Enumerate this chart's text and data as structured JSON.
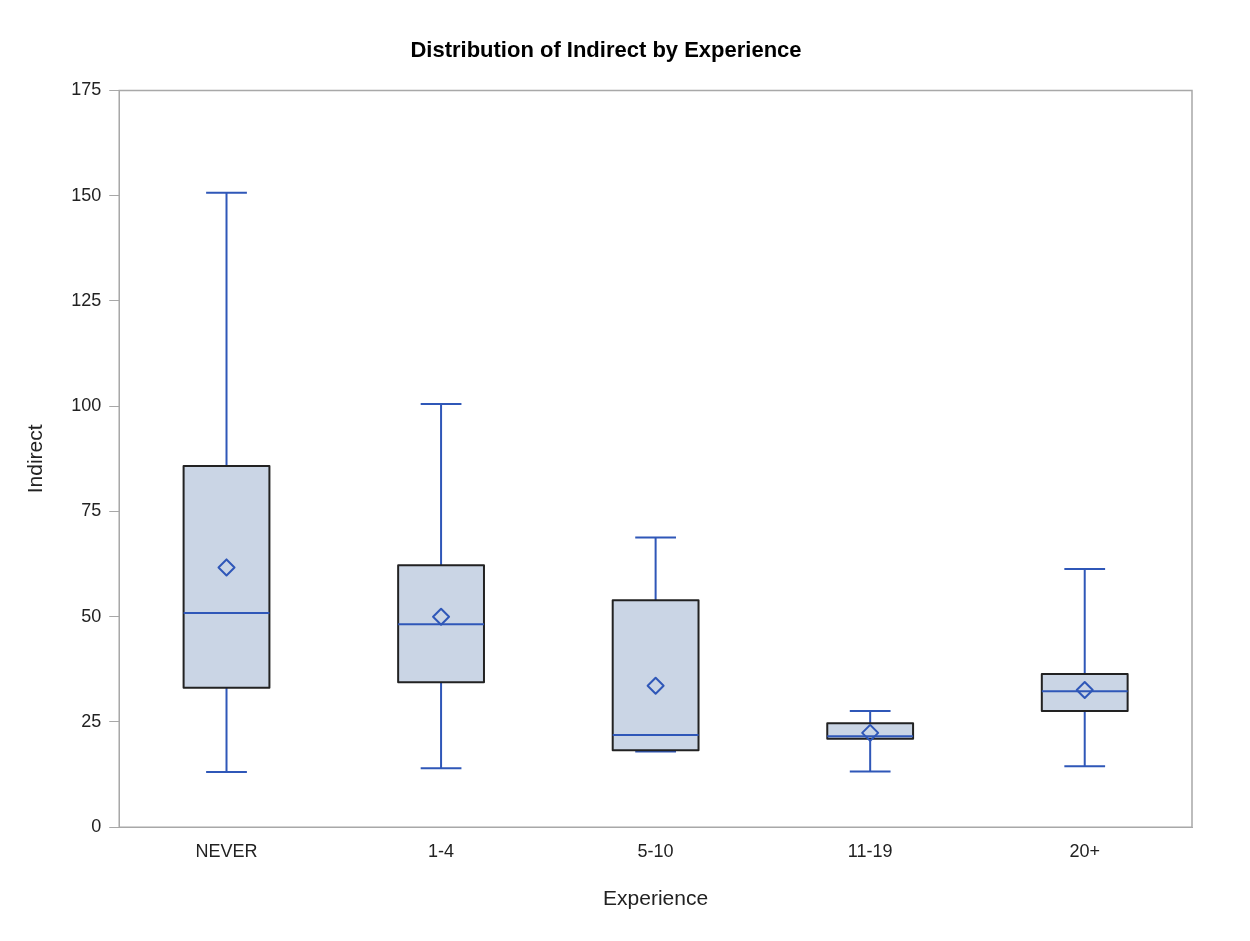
{
  "chart_data": {
    "type": "box",
    "title": "Distribution of Indirect by Experience",
    "xlabel": "Experience",
    "ylabel": "Indirect",
    "categories": [
      "NEVER",
      "1-4",
      "5-10",
      "11-19",
      "20+"
    ],
    "ylim": [
      0,
      175
    ],
    "yticks": [
      0,
      25,
      50,
      75,
      100,
      125,
      150,
      175
    ],
    "grid": false,
    "legend": false,
    "marker": "diamond",
    "series": [
      {
        "color": "#cad5e5",
        "boxes": [
          {
            "low": 13.1,
            "q1": 33.1,
            "median": 50.9,
            "q3": 85.8,
            "high": 150.7,
            "mean": 61.7
          },
          {
            "low": 14.0,
            "q1": 34.4,
            "median": 48.2,
            "q3": 62.2,
            "high": 100.5,
            "mean": 50.0
          },
          {
            "low": 18.0,
            "q1": 18.3,
            "median": 21.9,
            "q3": 53.9,
            "high": 68.8,
            "mean": 33.6
          },
          {
            "low": 13.2,
            "q1": 21.0,
            "median": 21.6,
            "q3": 24.7,
            "high": 27.6,
            "mean": 22.4
          },
          {
            "low": 14.5,
            "q1": 27.6,
            "median": 32.3,
            "q3": 36.4,
            "high": 61.3,
            "mean": 32.6
          }
        ]
      }
    ]
  }
}
